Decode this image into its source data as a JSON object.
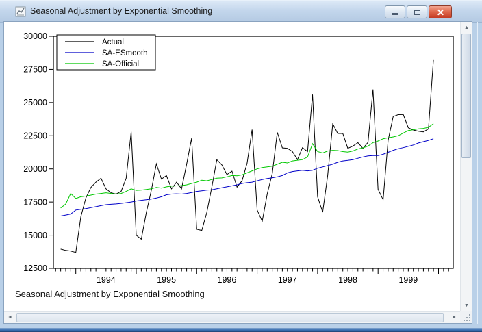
{
  "window": {
    "title": "Seasonal Adjustment by Exponential Smoothing",
    "controls": {
      "minimize": "minimize-icon",
      "maximize": "maximize-icon",
      "close": "close-icon"
    },
    "scroll_glyphs": {
      "up": "▲",
      "down": "▼",
      "left": "◄",
      "right": "►"
    }
  },
  "chart_data": {
    "type": "line",
    "title": "",
    "footer": "Seasonal Adjustment by Exponential Smoothing",
    "x_start_decimal": 1993.75,
    "x_step": 0.0833333,
    "x_start_label": "Oct 1993",
    "x_end_label": "Dec 1999",
    "xticklabels": [
      "1994",
      "1995",
      "1996",
      "1997",
      "1998",
      "1999"
    ],
    "ylim": [
      12500,
      30000
    ],
    "yticks": [
      12500,
      15000,
      17500,
      20000,
      22500,
      25000,
      27500,
      30000
    ],
    "grid": false,
    "legend_position": "top-left",
    "series": [
      {
        "name": "Actual",
        "color": "#000000",
        "values": [
          13950,
          13850,
          13800,
          13700,
          16400,
          17800,
          18600,
          19000,
          19300,
          18500,
          18200,
          18100,
          18300,
          19300,
          22800,
          15000,
          14700,
          16700,
          18400,
          20380,
          19230,
          19500,
          18500,
          19000,
          18500,
          20350,
          22320,
          15450,
          15360,
          16700,
          18630,
          20690,
          20300,
          19570,
          19830,
          18630,
          19100,
          20430,
          22960,
          16900,
          16045,
          18110,
          19660,
          22750,
          21585,
          21550,
          21300,
          20700,
          21600,
          21300,
          25600,
          17900,
          16735,
          19500,
          23400,
          22670,
          22670,
          21550,
          21720,
          21980,
          21550,
          22000,
          25990,
          18455,
          17680,
          22155,
          23950,
          24090,
          24100,
          23100,
          22930,
          22840,
          22790,
          23015,
          28250
        ]
      },
      {
        "name": "SA-ESmooth",
        "color": "#0000c8",
        "values": [
          16450,
          16520,
          16600,
          16900,
          16950,
          17000,
          17080,
          17150,
          17230,
          17300,
          17330,
          17360,
          17400,
          17450,
          17500,
          17580,
          17630,
          17680,
          17730,
          17800,
          17900,
          18050,
          18100,
          18120,
          18100,
          18150,
          18220,
          18300,
          18350,
          18400,
          18420,
          18500,
          18580,
          18650,
          18720,
          18800,
          18900,
          18960,
          19000,
          19100,
          19200,
          19280,
          19330,
          19400,
          19500,
          19700,
          19800,
          19850,
          19900,
          19850,
          19900,
          20050,
          20150,
          20250,
          20350,
          20500,
          20600,
          20640,
          20700,
          20800,
          20900,
          20980,
          21000,
          21000,
          21100,
          21250,
          21400,
          21520,
          21600,
          21700,
          21800,
          21950,
          22050,
          22150,
          22270
        ]
      },
      {
        "name": "SA-Official",
        "color": "#00c800",
        "values": [
          17050,
          17350,
          18150,
          17770,
          17900,
          17950,
          18025,
          18100,
          18150,
          18200,
          18150,
          18100,
          18150,
          18300,
          18500,
          18380,
          18400,
          18450,
          18500,
          18600,
          18550,
          18650,
          18700,
          18720,
          18740,
          18800,
          18900,
          19000,
          19150,
          19100,
          19200,
          19300,
          19320,
          19400,
          19500,
          19480,
          19550,
          19700,
          19850,
          20000,
          20100,
          20150,
          20200,
          20350,
          20500,
          20450,
          20600,
          20650,
          20700,
          20900,
          21900,
          21300,
          21200,
          21350,
          21400,
          21380,
          21300,
          21260,
          21350,
          21500,
          21585,
          21720,
          21980,
          22100,
          22270,
          22350,
          22410,
          22500,
          22700,
          22890,
          22950,
          23015,
          23050,
          23135,
          23410
        ]
      }
    ]
  }
}
